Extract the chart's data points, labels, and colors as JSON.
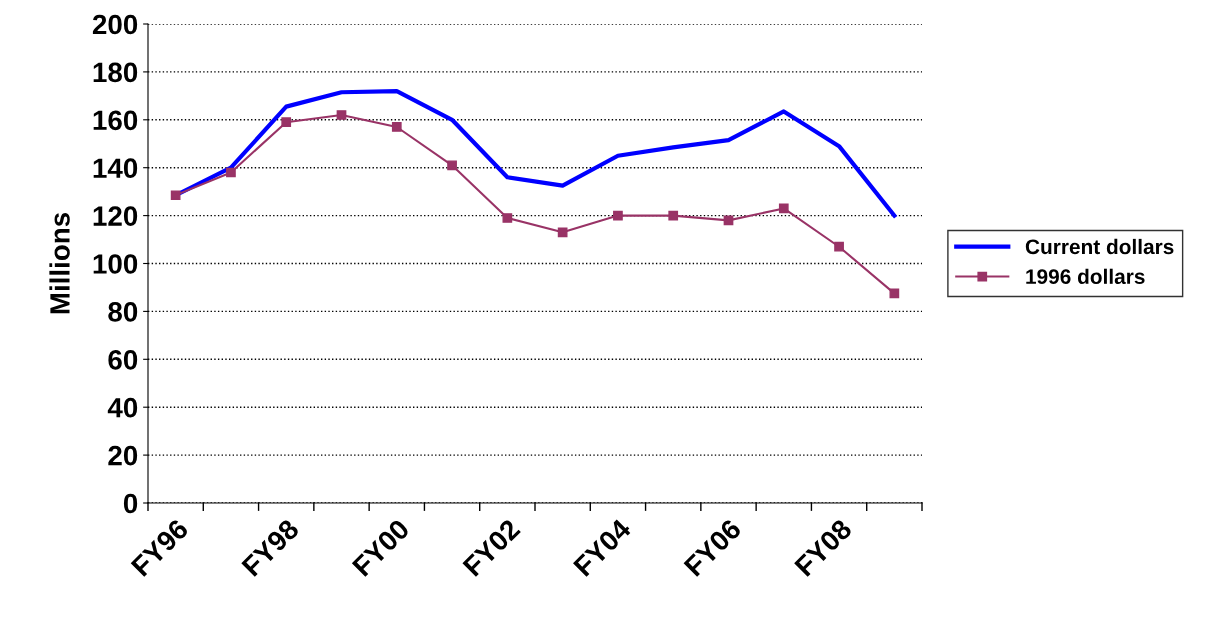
{
  "chart_data": {
    "type": "line",
    "ylabel": "Millions",
    "categories": [
      "FY96",
      null,
      "FY98",
      null,
      "FY00",
      null,
      "FY02",
      null,
      "FY04",
      null,
      "FY06",
      null,
      "FY08",
      null
    ],
    "series": [
      {
        "name": "Current dollars",
        "color": "#0000ff",
        "marker": "none",
        "values": [
          128.5,
          140,
          165.5,
          171.5,
          172,
          160,
          136,
          132.5,
          145,
          148.5,
          151.5,
          163.5,
          149,
          120
        ]
      },
      {
        "name": "1996 dollars",
        "color": "#993366",
        "marker": "square",
        "values": [
          128.5,
          138,
          159,
          162,
          157,
          141,
          119,
          113,
          120,
          120,
          118,
          123,
          107,
          87.5
        ]
      }
    ],
    "ylim": [
      0,
      200
    ],
    "yticks": [
      0,
      20,
      40,
      60,
      80,
      100,
      120,
      140,
      160,
      180,
      200
    ],
    "grid": "y",
    "legend": "right"
  }
}
